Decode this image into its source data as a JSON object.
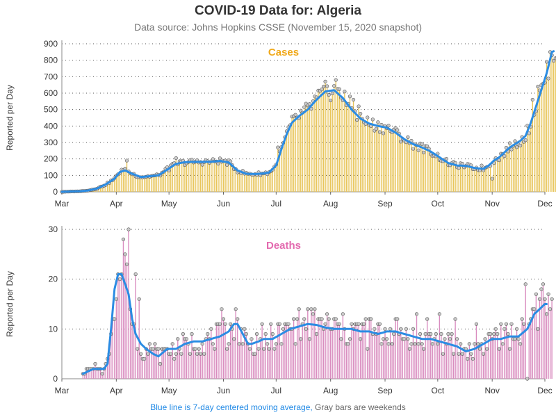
{
  "title": "COVID-19 Data for: Algeria",
  "subtitle": "Data source: Johns Hopkins CSSE (November 15, 2020 snapshot)",
  "footer": {
    "part1": "Blue line is 7-day centered moving average,",
    "part2": " Gray bars are weekends"
  },
  "colors": {
    "cases": "#f0a818",
    "cases_bar": "#e8c55a",
    "deaths": "#e36aaf",
    "deaths_bar": "#d98cbf",
    "avg_line": "#2b8ce3",
    "marker_fill": "#c8c8c8"
  },
  "chart_data": [
    {
      "type": "bar",
      "title": "Cases",
      "ylabel": "Reported per Day",
      "xlabel": "",
      "x_ticks": [
        "Mar",
        "Apr",
        "May",
        "Jun",
        "Jul",
        "Aug",
        "Sep",
        "Oct",
        "Nov",
        "Dec"
      ],
      "y_ticks": [
        0,
        100,
        200,
        300,
        400,
        500,
        600,
        700,
        800,
        900
      ],
      "ylim": [
        0,
        900
      ],
      "xlim": [
        "2020-03-01",
        "2020-12-01"
      ],
      "start_date": "2020-03-01",
      "grid": "horizontal dotted",
      "series": [
        {
          "name": "Cases",
          "anchors": [
            [
              0,
              0
            ],
            [
              5,
              2
            ],
            [
              10,
              3
            ],
            [
              15,
              8
            ],
            [
              20,
              20
            ],
            [
              25,
              45
            ],
            [
              30,
              80
            ],
            [
              33,
              120
            ],
            [
              36,
              130
            ],
            [
              40,
              110
            ],
            [
              45,
              90
            ],
            [
              50,
              95
            ],
            [
              55,
              100
            ],
            [
              60,
              135
            ],
            [
              65,
              170
            ],
            [
              70,
              180
            ],
            [
              75,
              182
            ],
            [
              80,
              182
            ],
            [
              85,
              183
            ],
            [
              90,
              188
            ],
            [
              95,
              178
            ],
            [
              100,
              130
            ],
            [
              105,
              110
            ],
            [
              110,
              108
            ],
            [
              115,
              112
            ],
            [
              118,
              118
            ],
            [
              122,
              160
            ],
            [
              125,
              260
            ],
            [
              128,
              350
            ],
            [
              131,
              420
            ],
            [
              135,
              460
            ],
            [
              140,
              500
            ],
            [
              145,
              560
            ],
            [
              150,
              610
            ],
            [
              155,
              618
            ],
            [
              160,
              570
            ],
            [
              165,
              500
            ],
            [
              170,
              445
            ],
            [
              175,
              415
            ],
            [
              180,
              400
            ],
            [
              185,
              390
            ],
            [
              190,
              360
            ],
            [
              195,
              320
            ],
            [
              200,
              290
            ],
            [
              205,
              270
            ],
            [
              210,
              245
            ],
            [
              215,
              210
            ],
            [
              220,
              175
            ],
            [
              225,
              160
            ],
            [
              230,
              158
            ],
            [
              235,
              145
            ],
            [
              240,
              140
            ],
            [
              243,
              160
            ],
            [
              246,
              190
            ],
            [
              249,
              210
            ],
            [
              252,
              240
            ],
            [
              255,
              270
            ],
            [
              258,
              290
            ],
            [
              261,
              310
            ],
            [
              264,
              340
            ],
            [
              267,
              420
            ],
            [
              270,
              520
            ],
            [
              273,
              620
            ],
            [
              276,
              720
            ],
            [
              279,
              850
            ],
            [
              282,
              865
            ],
            [
              283,
              860
            ]
          ],
          "outliers": [
            [
              37,
              190
            ],
            [
              34,
              135
            ],
            [
              60,
              150
            ],
            [
              65,
              205
            ],
            [
              123,
              270
            ],
            [
              156,
              680
            ],
            [
              161,
              610
            ],
            [
              164,
              580
            ],
            [
              166,
              560
            ],
            [
              169,
              520
            ],
            [
              245,
              255
            ],
            [
              245,
              80
            ],
            [
              239,
              160
            ],
            [
              268,
              560
            ],
            [
              271,
              640
            ]
          ]
        }
      ],
      "moving_average_note": "7-day centered moving average"
    },
    {
      "type": "bar",
      "title": "Deaths",
      "ylabel": "Reported per Day",
      "xlabel": "",
      "x_ticks": [
        "Mar",
        "Apr",
        "May",
        "Jun",
        "Jul",
        "Aug",
        "Sep",
        "Oct",
        "Nov",
        "Dec"
      ],
      "y_ticks": [
        0,
        10,
        20,
        30
      ],
      "ylim": [
        0,
        30
      ],
      "xlim": [
        "2020-03-01",
        "2020-12-01"
      ],
      "start_date": "2020-03-01",
      "grid": "horizontal dotted",
      "series": [
        {
          "name": "Deaths",
          "anchors": [
            [
              12,
              1
            ],
            [
              18,
              2
            ],
            [
              24,
              2
            ],
            [
              26,
              3
            ],
            [
              28,
              10
            ],
            [
              30,
              18
            ],
            [
              32,
              21
            ],
            [
              34,
              21
            ],
            [
              36,
              19
            ],
            [
              38,
              17
            ],
            [
              40,
              12
            ],
            [
              42,
              9
            ],
            [
              45,
              7
            ],
            [
              48,
              6
            ],
            [
              52,
              5
            ],
            [
              55,
              4.5
            ],
            [
              60,
              6
            ],
            [
              65,
              6
            ],
            [
              70,
              7
            ],
            [
              75,
              7.5
            ],
            [
              80,
              7.5
            ],
            [
              85,
              8
            ],
            [
              90,
              8.5
            ],
            [
              95,
              9.5
            ],
            [
              98,
              11
            ],
            [
              100,
              11
            ],
            [
              103,
              9
            ],
            [
              106,
              7
            ],
            [
              108,
              7
            ],
            [
              112,
              7.5
            ],
            [
              115,
              8
            ],
            [
              120,
              8
            ],
            [
              125,
              9
            ],
            [
              130,
              10
            ],
            [
              135,
              10.5
            ],
            [
              140,
              11
            ],
            [
              145,
              10.8
            ],
            [
              150,
              10.3
            ],
            [
              155,
              10
            ],
            [
              160,
              10
            ],
            [
              165,
              10
            ],
            [
              170,
              9.5
            ],
            [
              175,
              9.5
            ],
            [
              180,
              9
            ],
            [
              185,
              9.5
            ],
            [
              190,
              9.5
            ],
            [
              195,
              9
            ],
            [
              200,
              8.5
            ],
            [
              205,
              8
            ],
            [
              210,
              8
            ],
            [
              215,
              7.5
            ],
            [
              220,
              7
            ],
            [
              225,
              6.5
            ],
            [
              230,
              5.5
            ],
            [
              235,
              6
            ],
            [
              240,
              7
            ],
            [
              245,
              8
            ],
            [
              250,
              8
            ],
            [
              255,
              8.5
            ],
            [
              260,
              8.5
            ],
            [
              265,
              10
            ],
            [
              269,
              13
            ],
            [
              272,
              14
            ],
            [
              275,
              15
            ],
            [
              278,
              15
            ],
            [
              279,
              15
            ]
          ],
          "outliers": [
            [
              35,
              28
            ],
            [
              36,
              25
            ],
            [
              38,
              30
            ],
            [
              42,
              21
            ],
            [
              44,
              16
            ],
            [
              53,
              7
            ],
            [
              71,
              8
            ],
            [
              91,
              14
            ],
            [
              93,
              11
            ],
            [
              115,
              6
            ],
            [
              134,
              12
            ],
            [
              144,
              14
            ],
            [
              148,
              12
            ],
            [
              180,
              11
            ],
            [
              202,
              13
            ],
            [
              208,
              12
            ],
            [
              215,
              13
            ],
            [
              224,
              12
            ],
            [
              236,
              11
            ],
            [
              247,
              10
            ],
            [
              259,
              10
            ],
            [
              264,
              19
            ],
            [
              273,
              18
            ],
            [
              272,
              16
            ],
            [
              276,
              13
            ],
            [
              265,
              0
            ]
          ]
        }
      ],
      "moving_average_note": "7-day centered moving average"
    }
  ]
}
